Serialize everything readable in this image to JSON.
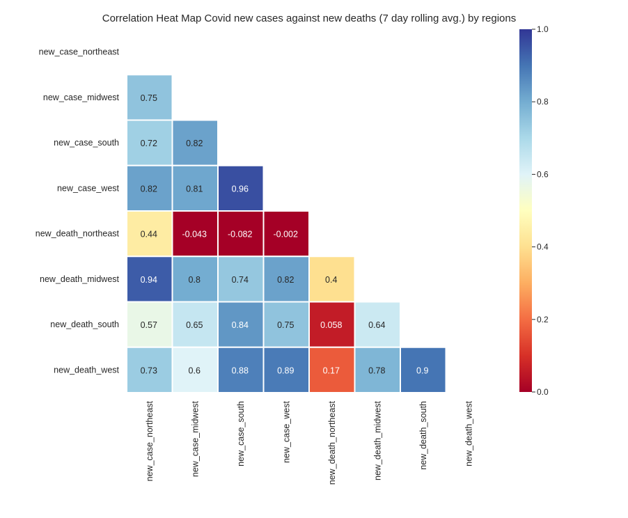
{
  "chart_data": {
    "type": "heatmap",
    "title": "Correlation Heat Map Covid new cases against new deaths (7 day rolling avg.) by regions",
    "variables": [
      "new_case_northeast",
      "new_case_midwest",
      "new_case_south",
      "new_case_west",
      "new_death_northeast",
      "new_death_midwest",
      "new_death_south",
      "new_death_west"
    ],
    "mask": "upper triangle including diagonal",
    "matrix_lower": [
      [],
      [
        0.75
      ],
      [
        0.72,
        0.82
      ],
      [
        0.82,
        0.81,
        0.96
      ],
      [
        0.44,
        -0.043,
        -0.082,
        -0.002
      ],
      [
        0.94,
        0.8,
        0.74,
        0.82,
        0.4
      ],
      [
        0.57,
        0.65,
        0.84,
        0.75,
        0.058,
        0.64
      ],
      [
        0.73,
        0.6,
        0.88,
        0.89,
        0.17,
        0.78,
        0.9
      ]
    ],
    "cell_labels": [
      [],
      [
        "0.75"
      ],
      [
        "0.72",
        "0.82"
      ],
      [
        "0.82",
        "0.81",
        "0.96"
      ],
      [
        "0.44",
        "-0.043",
        "-0.082",
        "-0.002"
      ],
      [
        "0.94",
        "0.8",
        "0.74",
        "0.82",
        "0.4"
      ],
      [
        "0.57",
        "0.65",
        "0.84",
        "0.75",
        "0.058",
        "0.64"
      ],
      [
        "0.73",
        "0.6",
        "0.88",
        "0.89",
        "0.17",
        "0.78",
        "0.9"
      ]
    ],
    "colormap": "RdYlBu",
    "vmin": 0.0,
    "vmax": 1.0,
    "colorbar_ticks": [
      "0.0",
      "0.2",
      "0.4",
      "0.6",
      "0.8",
      "1.0"
    ],
    "colorbar_tick_values": [
      0.0,
      0.2,
      0.4,
      0.6,
      0.8,
      1.0
    ],
    "grid": false,
    "colorbar_placement": "right"
  }
}
